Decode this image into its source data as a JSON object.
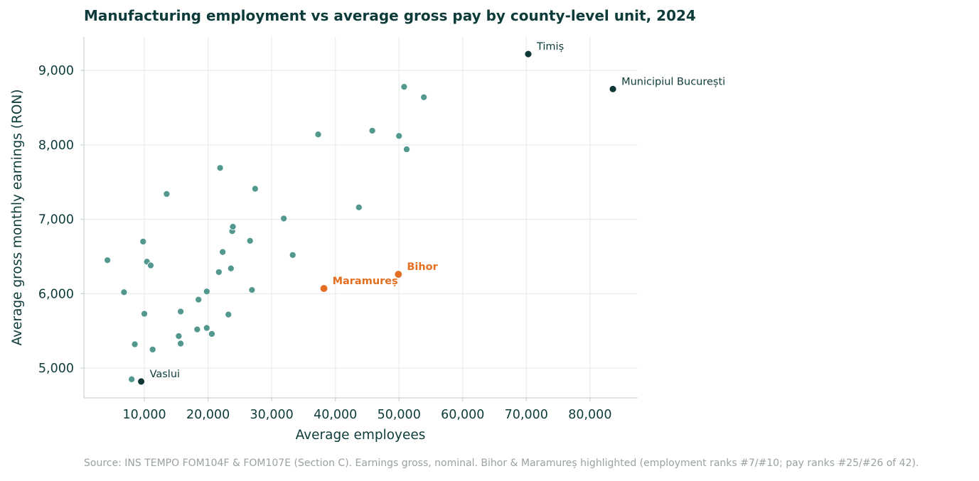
{
  "title": "Manufacturing employment vs average gross pay by county-level unit, 2024",
  "source": "Source: INS TEMPO FOM104F & FOM107E (Section C). Earnings gross, nominal. Bihor & Maramureș highlighted (employment ranks #7/#10; pay ranks #25/#26 of 42).",
  "colors": {
    "base": "#52988f",
    "labeled": "#0e3736",
    "highlight": "#e36f22",
    "grid": "#e6ecec",
    "axis": "#c9d3d3"
  },
  "chart_data": {
    "type": "scatter",
    "title": "Manufacturing employment vs average gross pay by county-level unit, 2024",
    "xlabel": "Average employees",
    "ylabel": "Average gross monthly earnings (RON)",
    "xlim": [
      500,
      87500
    ],
    "ylim": [
      4600,
      9450
    ],
    "xticks": [
      10000,
      20000,
      30000,
      40000,
      50000,
      60000,
      70000,
      80000
    ],
    "xtick_labels": [
      "10,000",
      "20,000",
      "30,000",
      "40,000",
      "50,000",
      "60,000",
      "70,000",
      "80,000"
    ],
    "yticks": [
      5000,
      6000,
      7000,
      8000,
      9000
    ],
    "ytick_labels": [
      "5,000",
      "6,000",
      "7,000",
      "8,000",
      "9,000"
    ],
    "grid": true,
    "points": [
      {
        "x": 4200,
        "y": 6450
      },
      {
        "x": 6800,
        "y": 6020
      },
      {
        "x": 8000,
        "y": 4850
      },
      {
        "x": 8500,
        "y": 5320
      },
      {
        "x": 9800,
        "y": 6700
      },
      {
        "x": 10000,
        "y": 5730
      },
      {
        "x": 10400,
        "y": 6430
      },
      {
        "x": 11000,
        "y": 6380
      },
      {
        "x": 11300,
        "y": 5250
      },
      {
        "x": 13500,
        "y": 7340
      },
      {
        "x": 15400,
        "y": 5430
      },
      {
        "x": 15700,
        "y": 5760
      },
      {
        "x": 15700,
        "y": 5330
      },
      {
        "x": 18300,
        "y": 5520
      },
      {
        "x": 18500,
        "y": 5920
      },
      {
        "x": 19800,
        "y": 6030
      },
      {
        "x": 19800,
        "y": 5540
      },
      {
        "x": 20600,
        "y": 5460
      },
      {
        "x": 21700,
        "y": 6290
      },
      {
        "x": 21900,
        "y": 7690
      },
      {
        "x": 22300,
        "y": 6560
      },
      {
        "x": 23200,
        "y": 5720
      },
      {
        "x": 23600,
        "y": 6340
      },
      {
        "x": 23800,
        "y": 6840
      },
      {
        "x": 23900,
        "y": 6900
      },
      {
        "x": 26600,
        "y": 6710
      },
      {
        "x": 26900,
        "y": 6050
      },
      {
        "x": 27400,
        "y": 7410
      },
      {
        "x": 31900,
        "y": 7010
      },
      {
        "x": 33300,
        "y": 6520
      },
      {
        "x": 37300,
        "y": 8140
      },
      {
        "x": 43700,
        "y": 7160
      },
      {
        "x": 45800,
        "y": 8190
      },
      {
        "x": 50000,
        "y": 8120
      },
      {
        "x": 50800,
        "y": 8780
      },
      {
        "x": 51200,
        "y": 7940
      },
      {
        "x": 53900,
        "y": 8640
      },
      {
        "x": 9500,
        "y": 4820,
        "label": "Vaslui",
        "kind": "labeled"
      },
      {
        "x": 70300,
        "y": 9220,
        "label": "Timiș",
        "kind": "labeled"
      },
      {
        "x": 83600,
        "y": 8750,
        "label": "Municipiul București",
        "kind": "labeled"
      },
      {
        "x": 38200,
        "y": 6070,
        "label": "Maramureș",
        "kind": "highlight"
      },
      {
        "x": 49900,
        "y": 6260,
        "label": "Bihor",
        "kind": "highlight"
      }
    ]
  }
}
